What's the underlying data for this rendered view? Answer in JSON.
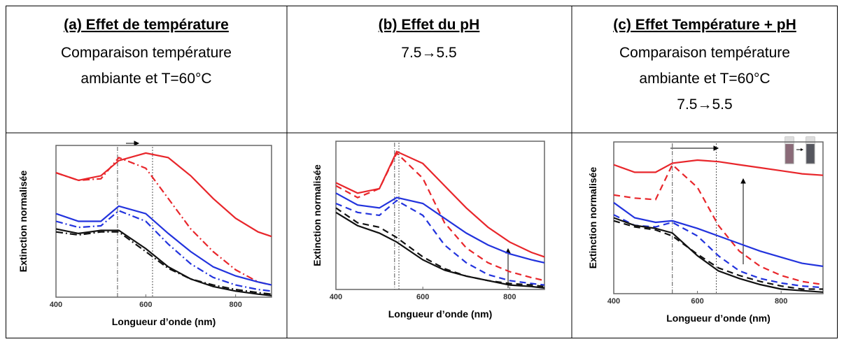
{
  "header_cells": [
    {
      "title": "(a) Effet de température",
      "lines": [
        "Comparaison température",
        "ambiante et T=60°C"
      ]
    },
    {
      "title": "(b) Effet du pH",
      "lines": [
        "7.5→5.5"
      ]
    },
    {
      "title": "(c) Effet Température + pH",
      "lines": [
        "Comparaison température",
        "ambiante et T=60°C",
        "7.5→5.5"
      ]
    }
  ],
  "chart_data": [
    {
      "type": "line",
      "x_label": "Longueur d’onde (nm)",
      "y_label": "Extinction normalisée",
      "x": [
        400,
        450,
        500,
        540,
        600,
        650,
        700,
        750,
        800,
        850,
        880
      ],
      "xlim": [
        400,
        880
      ],
      "xticks": [
        400,
        600,
        800
      ],
      "ylim": [
        0,
        100
      ],
      "vlines": [
        537,
        615
      ],
      "series": [
        {
          "color": "#e8262b",
          "dash": "solid",
          "values": [
            82,
            77,
            80,
            90,
            95,
            92,
            80,
            65,
            52,
            43,
            40
          ]
        },
        {
          "color": "#e8262b",
          "dash": "dashdot",
          "values": [
            82,
            77,
            78,
            92,
            85,
            65,
            45,
            30,
            18,
            10,
            8
          ]
        },
        {
          "color": "#2233dd",
          "dash": "solid",
          "values": [
            55,
            50,
            50,
            60,
            55,
            42,
            30,
            20,
            14,
            10,
            8
          ]
        },
        {
          "color": "#2233dd",
          "dash": "dashdot",
          "values": [
            50,
            46,
            47,
            57,
            50,
            35,
            22,
            13,
            8,
            5,
            4
          ]
        },
        {
          "color": "#111111",
          "dash": "solid",
          "values": [
            45,
            42,
            44,
            44,
            32,
            20,
            12,
            7,
            4,
            2,
            1
          ]
        },
        {
          "color": "#111111",
          "dash": "dashdot",
          "values": [
            43,
            41,
            43,
            43,
            30,
            19,
            12,
            8,
            5,
            3,
            2
          ]
        }
      ]
    },
    {
      "type": "line",
      "x_label": "Longueur d’onde (nm)",
      "y_label": "Extinction normalisée",
      "x": [
        400,
        450,
        500,
        540,
        600,
        650,
        700,
        750,
        800,
        850,
        880
      ],
      "xlim": [
        400,
        880
      ],
      "xticks": [
        400,
        600,
        800
      ],
      "ylim": [
        0,
        100
      ],
      "vlines": [
        535,
        545
      ],
      "series": [
        {
          "color": "#e8262b",
          "dash": "solid",
          "values": [
            72,
            65,
            68,
            93,
            85,
            70,
            55,
            42,
            32,
            25,
            22
          ]
        },
        {
          "color": "#e8262b",
          "dash": "dashed",
          "values": [
            70,
            62,
            68,
            92,
            75,
            45,
            28,
            18,
            12,
            8,
            6
          ]
        },
        {
          "color": "#2233dd",
          "dash": "solid",
          "values": [
            65,
            57,
            55,
            62,
            58,
            48,
            38,
            30,
            24,
            20,
            18
          ]
        },
        {
          "color": "#2233dd",
          "dash": "dashed",
          "values": [
            58,
            52,
            50,
            60,
            50,
            30,
            18,
            10,
            6,
            4,
            3
          ]
        },
        {
          "color": "#111111",
          "dash": "solid",
          "values": [
            52,
            43,
            38,
            32,
            20,
            13,
            9,
            6,
            3,
            2,
            1
          ]
        },
        {
          "color": "#111111",
          "dash": "dashed",
          "values": [
            55,
            45,
            42,
            35,
            22,
            14,
            9,
            6,
            4,
            3,
            2
          ]
        }
      ]
    },
    {
      "type": "line",
      "x_label": "Longueur d’onde (nm)",
      "y_label": "Extinction normalisée",
      "x": [
        400,
        450,
        500,
        540,
        600,
        650,
        700,
        750,
        800,
        850,
        900
      ],
      "xlim": [
        400,
        900
      ],
      "xticks": [
        400,
        600,
        800
      ],
      "ylim": [
        0,
        100
      ],
      "vlines": [
        540,
        645
      ],
      "series": [
        {
          "color": "#e8262b",
          "dash": "solid",
          "values": [
            85,
            80,
            80,
            86,
            88,
            87,
            85,
            83,
            81,
            79,
            78
          ]
        },
        {
          "color": "#e8262b",
          "dash": "dashed",
          "values": [
            65,
            63,
            62,
            85,
            70,
            45,
            28,
            18,
            12,
            8,
            6
          ]
        },
        {
          "color": "#2233dd",
          "dash": "solid",
          "values": [
            60,
            50,
            47,
            48,
            43,
            38,
            33,
            28,
            24,
            20,
            18
          ]
        },
        {
          "color": "#2233dd",
          "dash": "dashed",
          "values": [
            52,
            45,
            44,
            47,
            38,
            25,
            15,
            10,
            7,
            5,
            4
          ]
        },
        {
          "color": "#111111",
          "dash": "solid",
          "values": [
            50,
            45,
            43,
            40,
            25,
            15,
            10,
            6,
            3,
            2,
            1
          ]
        },
        {
          "color": "#111111",
          "dash": "dashed",
          "values": [
            48,
            44,
            42,
            38,
            26,
            17,
            12,
            8,
            5,
            3,
            3
          ]
        }
      ]
    }
  ]
}
